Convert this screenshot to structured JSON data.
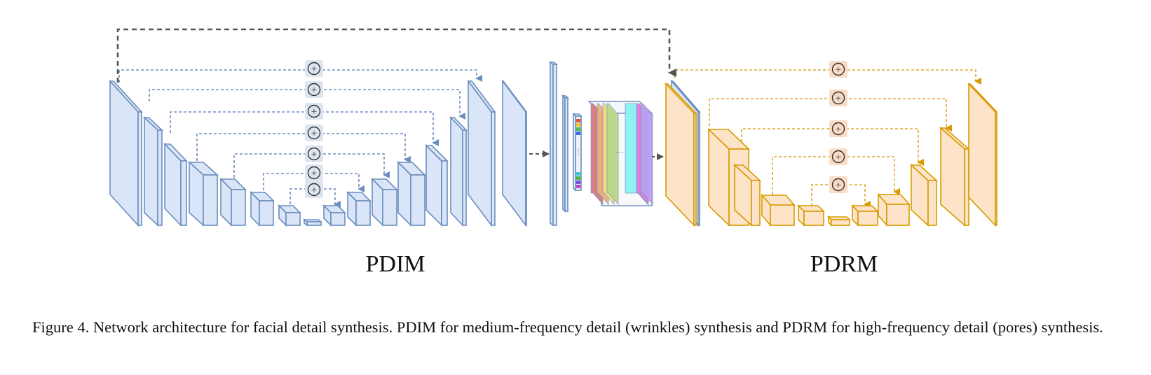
{
  "diagram": {
    "left_label": "PDIM",
    "right_label": "PDRM",
    "plus_symbol": "+",
    "colors": {
      "blue_fill": "#dae6f7",
      "blue_stroke": "#6c8ebf",
      "orange_fill": "#fde3c8",
      "orange_stroke": "#d79b00",
      "orange_dash": "#e0a52f",
      "gray_dash": "#555555",
      "plus_bg_blue": "#dde6f0",
      "plus_bg_orange": "#f8dcc6"
    }
  },
  "caption": {
    "text": "Figure 4. Network architecture for facial detail synthesis. PDIM for medium-frequency detail (wrinkles) synthesis and PDRM for high-frequency detail (pores) synthesis."
  }
}
